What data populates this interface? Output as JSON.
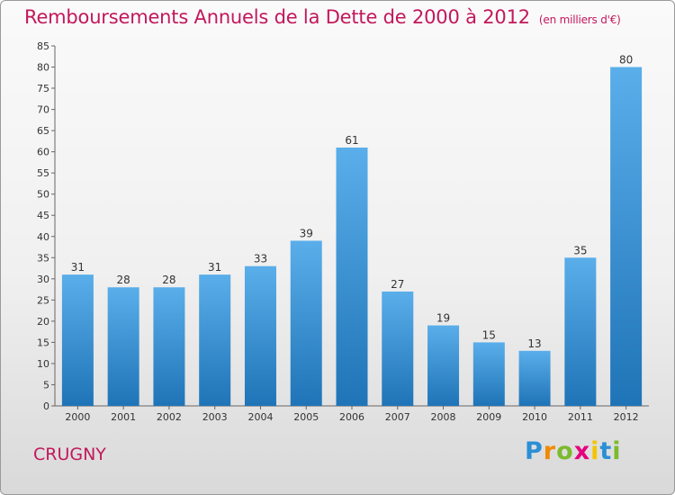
{
  "title": "Remboursements Annuels de la Dette de 2000 à 2012",
  "unit": "(en milliers d'€)",
  "commune": "CRUGNY",
  "logo": {
    "letters": [
      "P",
      "r",
      "o",
      "x",
      "i",
      "t",
      "i"
    ],
    "colors": [
      "#2b8fd6",
      "#f08a00",
      "#7cba2e",
      "#e6007e",
      "#f4c400",
      "#2b8fd6",
      "#7cba2e"
    ]
  },
  "colors": {
    "bar_top": "#5aaeea",
    "bar_bottom": "#1f74b7",
    "accent": "#c2185b"
  },
  "chart_data": {
    "type": "bar",
    "title": "Remboursements Annuels de la Dette de 2000 à 2012",
    "xlabel": "",
    "ylabel": "",
    "categories": [
      "2000",
      "2001",
      "2002",
      "2003",
      "2004",
      "2005",
      "2006",
      "2007",
      "2008",
      "2009",
      "2010",
      "2011",
      "2012"
    ],
    "values": [
      31,
      28,
      28,
      31,
      33,
      39,
      61,
      27,
      19,
      15,
      13,
      35,
      80
    ],
    "ylim": [
      0,
      85
    ],
    "yticks": [
      0,
      5,
      10,
      15,
      20,
      25,
      30,
      35,
      40,
      45,
      50,
      55,
      60,
      65,
      70,
      75,
      80,
      85
    ],
    "grid": false
  }
}
